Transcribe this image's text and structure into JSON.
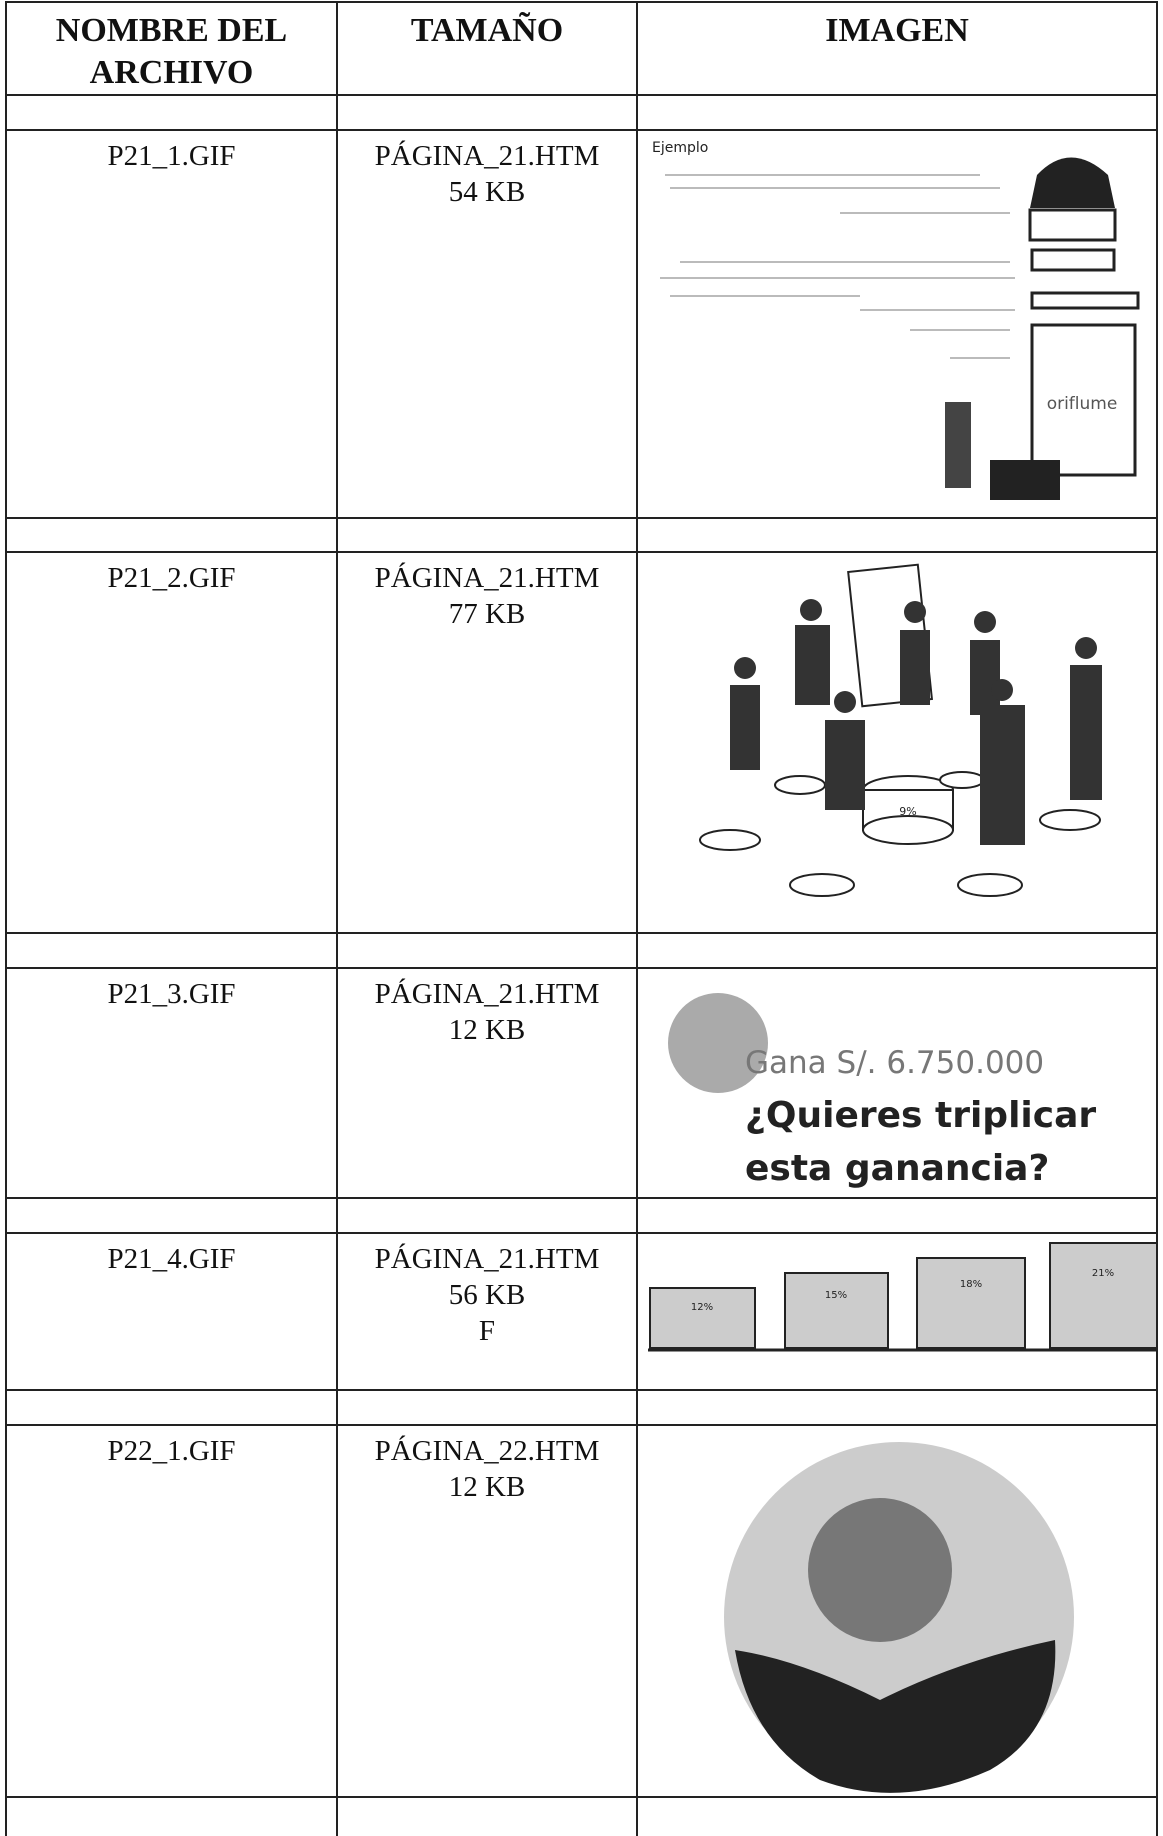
{
  "table": {
    "headers": [
      "NOMBRE DEL ARCHIVO",
      "TAMAÑO",
      "IMAGEN"
    ],
    "rows": [
      {
        "file": "P21_1.GIF",
        "page": "PÁGINA_21.HTM",
        "size": "54 KB",
        "image": {
          "caption": "Ejemplo",
          "brand": "oriflume"
        }
      },
      {
        "file": "P21_2.GIF",
        "page": "PÁGINA_21.HTM",
        "size": "77 KB",
        "image": {
          "label": "9%"
        }
      },
      {
        "file": "P21_3.GIF",
        "page": "PÁGINA_21.HTM",
        "size": "12 KB",
        "image": {
          "line1": "Gana S/. 6.750.000",
          "line2": "¿Quieres triplicar",
          "line3": "esta ganancia?"
        }
      },
      {
        "file": "P21_4.GIF",
        "page": "PÁGINA_21.HTM",
        "size": "56 KB",
        "note": "F",
        "image": {
          "labels": [
            "12%",
            "15%",
            "18%",
            "21%"
          ]
        }
      },
      {
        "file": "P22_1.GIF",
        "page": "PÁGINA_22.HTM",
        "size": "12 KB"
      }
    ]
  }
}
